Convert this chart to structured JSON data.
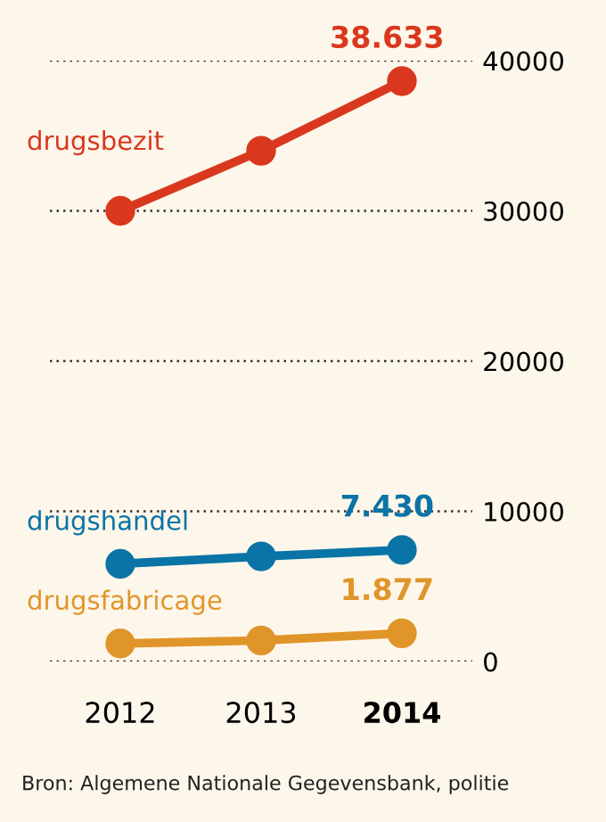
{
  "chart_data": {
    "type": "line",
    "categories": [
      "2012",
      "2013",
      "2014"
    ],
    "series": [
      {
        "name": "drugsbezit",
        "color": "#d9381e",
        "values": [
          30000,
          34000,
          38633
        ],
        "value_labels": [
          null,
          null,
          "38.633"
        ]
      },
      {
        "name": "drugshandel",
        "color": "#0a74a6",
        "values": [
          6500,
          7000,
          7430
        ],
        "value_labels": [
          null,
          null,
          "7.430"
        ]
      },
      {
        "name": "drugsfabricage",
        "color": "#e0952a",
        "values": [
          1200,
          1400,
          1877
        ],
        "value_labels": [
          null,
          null,
          "1.877"
        ]
      }
    ],
    "ylim": [
      0,
      40000
    ],
    "yticks": [
      0,
      10000,
      20000,
      30000,
      40000
    ],
    "grid": "y",
    "marker": "circle",
    "line_style": "solid",
    "legend": false,
    "annotations": [
      "Bron: Algemene Nationale Gegevensbank, politie"
    ]
  }
}
